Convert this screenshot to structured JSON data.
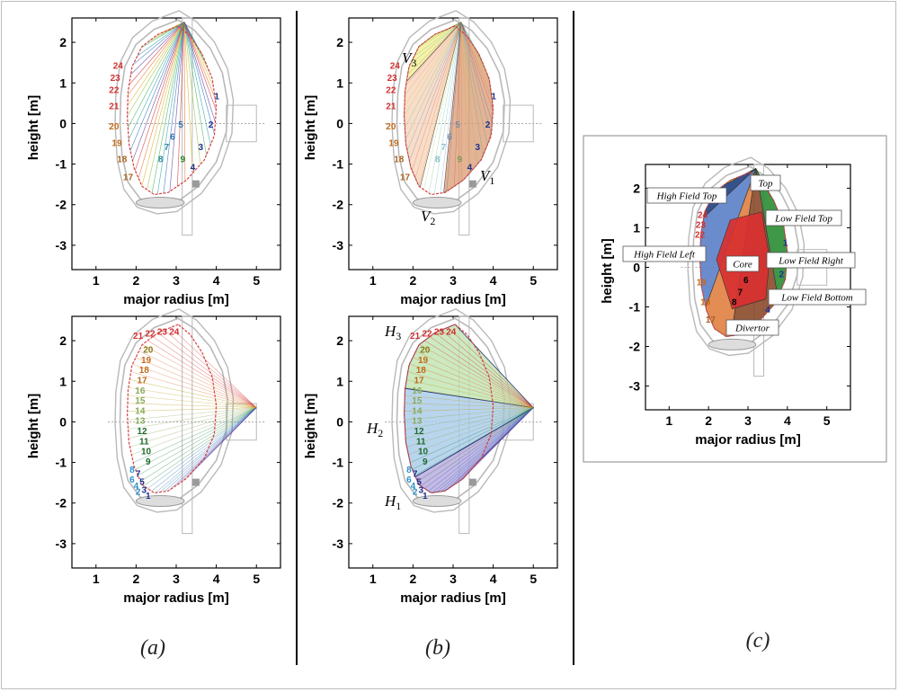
{
  "axes": {
    "xlabel": "major radius [m]",
    "ylabel": "height [m]",
    "xticks": [
      "1",
      "2",
      "3",
      "4",
      "5"
    ],
    "yticks": [
      "2",
      "1",
      "0",
      "-1",
      "-2",
      "-3"
    ]
  },
  "captions": {
    "a": "(a)",
    "b": "(b)",
    "c": "(c)"
  },
  "markers": {
    "V3": {
      "main": "V",
      "sub": "3"
    },
    "V2": {
      "main": "V",
      "sub": "2"
    },
    "V1": {
      "main": "V",
      "sub": "1"
    },
    "H3": {
      "main": "H",
      "sub": "3"
    },
    "H2": {
      "main": "H",
      "sub": "2"
    },
    "H1": {
      "main": "H",
      "sub": "1"
    }
  },
  "regions": {
    "top": "Top",
    "high_field_top": "High Field Top",
    "low_field_top": "Low Field Top",
    "high_field_left": "High Field Left",
    "core": "Core",
    "low_field_right": "Low Field Right",
    "low_field_bottom": "Low Field Bottom",
    "divertor": "Divertor"
  },
  "colors": {
    "plasma_boundary": "#d64040",
    "vessel": "#b9b9b9",
    "top_region": "#f4ec2a",
    "high_field_top": "#1f3f80",
    "low_field_top": "#2aa84a",
    "high_field_left": "#5a80c8",
    "core": "#d83030",
    "low_field_right": "#2a8c34",
    "low_field_bottom": "#8a4a2a",
    "divertor": "#e08040"
  },
  "vertical_channels": {
    "right": [
      {
        "label": "1",
        "color": "#1f2f8f"
      },
      {
        "label": "2",
        "color": "#1f2f8f"
      },
      {
        "label": "3",
        "color": "#1f2f8f"
      },
      {
        "label": "4",
        "color": "#1f2f8f"
      },
      {
        "label": "5",
        "color": "#2a70b0"
      },
      {
        "label": "6",
        "color": "#2a70b0"
      },
      {
        "label": "7",
        "color": "#2a8aa0"
      },
      {
        "label": "8",
        "color": "#2a8aa0"
      },
      {
        "label": "9",
        "color": "#2a8a30"
      }
    ],
    "left": [
      {
        "label": "24",
        "color": "#d43030"
      },
      {
        "label": "23",
        "color": "#d43030"
      },
      {
        "label": "22",
        "color": "#d43030"
      },
      {
        "label": "21",
        "color": "#d43030"
      },
      {
        "label": "20",
        "color": "#c06a1a"
      },
      {
        "label": "19",
        "color": "#c06a1a"
      },
      {
        "label": "18",
        "color": "#a8641f"
      },
      {
        "label": "17",
        "color": "#a8641f"
      }
    ]
  },
  "horizontal_channels": [
    {
      "label": "21",
      "color": "#d43030"
    },
    {
      "label": "22",
      "color": "#d43030"
    },
    {
      "label": "23",
      "color": "#d43030"
    },
    {
      "label": "24",
      "color": "#d43030"
    },
    {
      "label": "20",
      "color": "#8a7a1a"
    },
    {
      "label": "19",
      "color": "#c06a1a"
    },
    {
      "label": "18",
      "color": "#c06a1a"
    },
    {
      "label": "17",
      "color": "#c06a1a"
    },
    {
      "label": "16",
      "color": "#8aaa5a"
    },
    {
      "label": "15",
      "color": "#8aaa5a"
    },
    {
      "label": "14",
      "color": "#8aaa5a"
    },
    {
      "label": "13",
      "color": "#8aaa5a"
    },
    {
      "label": "12",
      "color": "#1f6a2a"
    },
    {
      "label": "11",
      "color": "#1f6a2a"
    },
    {
      "label": "10",
      "color": "#1f6a2a"
    },
    {
      "label": "9",
      "color": "#1f6a2a"
    },
    {
      "label": "8",
      "color": "#2a90c8"
    },
    {
      "label": "7",
      "color": "#1f2f8f"
    },
    {
      "label": "6",
      "color": "#2a90c8"
    },
    {
      "label": "5",
      "color": "#1f2f8f"
    },
    {
      "label": "4",
      "color": "#2a90c8"
    },
    {
      "label": "3",
      "color": "#1f2f8f"
    },
    {
      "label": "2",
      "color": "#2a90c8"
    },
    {
      "label": "1",
      "color": "#1f2f8f"
    }
  ],
  "c_channels": [
    {
      "label": "24",
      "color": "#d43030"
    },
    {
      "label": "23",
      "color": "#d43030"
    },
    {
      "label": "22",
      "color": "#d43030"
    },
    {
      "label": "19",
      "color": "#c06a1a"
    },
    {
      "label": "18",
      "color": "#c06a1a"
    },
    {
      "label": "17",
      "color": "#a8641f"
    },
    {
      "label": "1",
      "color": "#1f2f8f"
    },
    {
      "label": "2",
      "color": "#1f2f8f"
    },
    {
      "label": "4",
      "color": "#1f2f8f"
    },
    {
      "label": "5",
      "color": "#000000"
    },
    {
      "label": "6",
      "color": "#000000"
    },
    {
      "label": "7",
      "color": "#000000"
    },
    {
      "label": "8",
      "color": "#000000"
    }
  ]
}
